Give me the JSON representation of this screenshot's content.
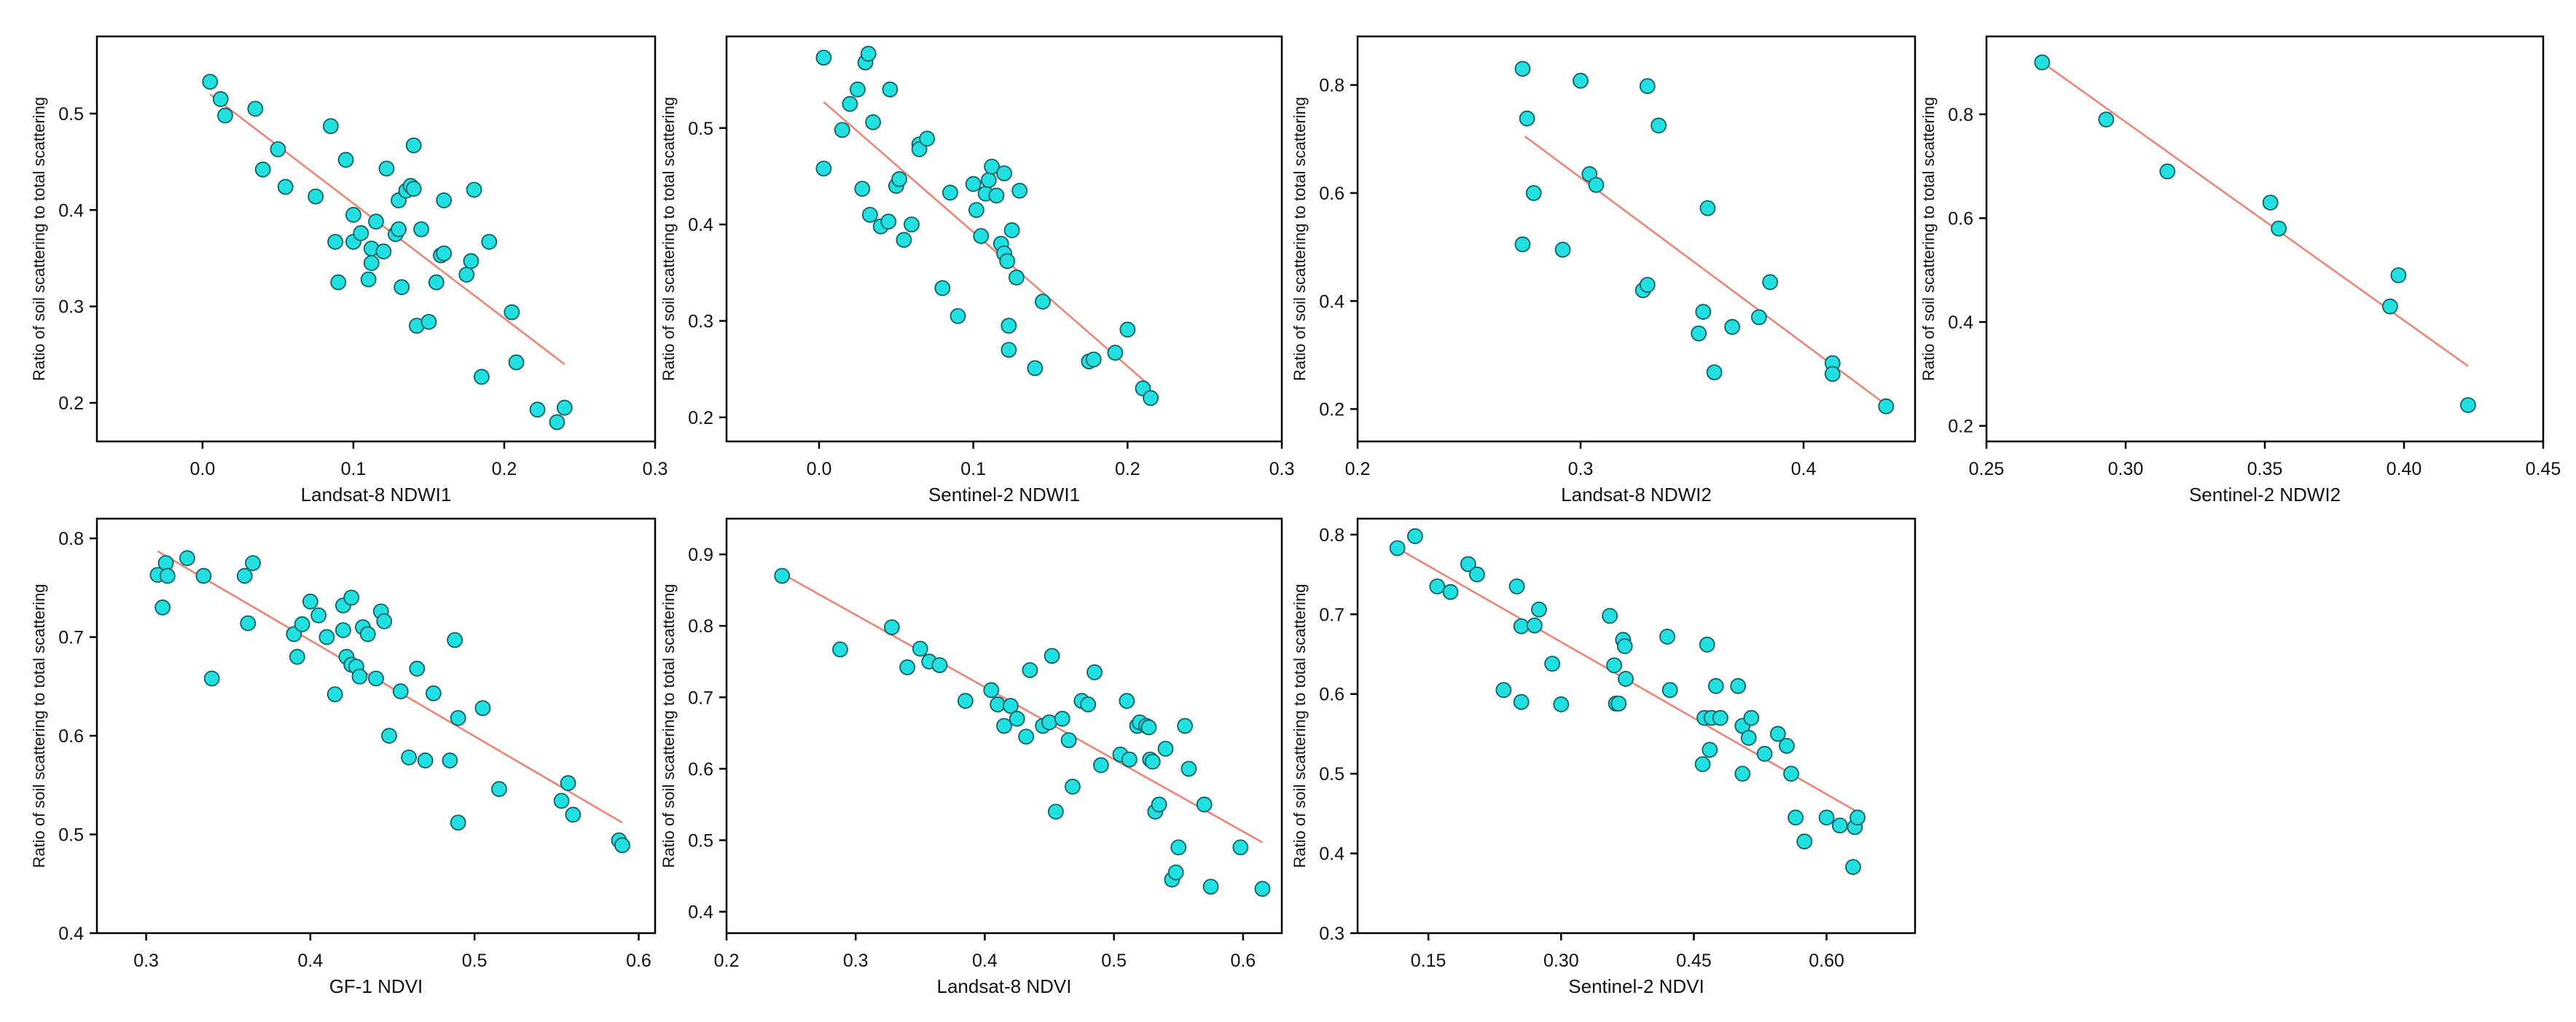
{
  "figure": {
    "panel_count": 7
  },
  "style": {
    "point_fill": "#22e0e0",
    "point_stroke": "#0f5f66",
    "fit_color": "#f08070",
    "axis_color": "#000000"
  },
  "chart_data": [
    {
      "type": "scatter",
      "xlabel": "Landsat-8 NDWI1",
      "ylabel": "Ratio of soil scattering to total scattering",
      "xlim": [
        -0.07,
        0.3
      ],
      "ylim": [
        0.16,
        0.58
      ],
      "xticks": [
        0.0,
        0.1,
        0.2,
        0.3
      ],
      "xtick_labels": [
        "0.0",
        "0.1",
        "0.2",
        "0.3"
      ],
      "yticks": [
        0.2,
        0.3,
        0.4,
        0.5
      ],
      "ytick_labels": [
        "0.2",
        "0.3",
        "0.4",
        "0.5"
      ],
      "fit_line": {
        "x": [
          0.005,
          0.24
        ],
        "y": [
          0.52,
          0.24
        ]
      },
      "points": [
        [
          0.005,
          0.533
        ],
        [
          0.012,
          0.515
        ],
        [
          0.015,
          0.498
        ],
        [
          0.035,
          0.505
        ],
        [
          0.04,
          0.442
        ],
        [
          0.05,
          0.463
        ],
        [
          0.055,
          0.424
        ],
        [
          0.075,
          0.414
        ],
        [
          0.085,
          0.487
        ],
        [
          0.088,
          0.367
        ],
        [
          0.09,
          0.325
        ],
        [
          0.095,
          0.452
        ],
        [
          0.1,
          0.395
        ],
        [
          0.1,
          0.367
        ],
        [
          0.105,
          0.376
        ],
        [
          0.11,
          0.328
        ],
        [
          0.112,
          0.36
        ],
        [
          0.112,
          0.345
        ],
        [
          0.115,
          0.388
        ],
        [
          0.12,
          0.357
        ],
        [
          0.122,
          0.443
        ],
        [
          0.128,
          0.375
        ],
        [
          0.13,
          0.38
        ],
        [
          0.13,
          0.41
        ],
        [
          0.135,
          0.42
        ],
        [
          0.138,
          0.425
        ],
        [
          0.14,
          0.467
        ],
        [
          0.14,
          0.422
        ],
        [
          0.142,
          0.28
        ],
        [
          0.145,
          0.38
        ],
        [
          0.132,
          0.32
        ],
        [
          0.15,
          0.284
        ],
        [
          0.155,
          0.325
        ],
        [
          0.158,
          0.353
        ],
        [
          0.16,
          0.355
        ],
        [
          0.16,
          0.41
        ],
        [
          0.175,
          0.333
        ],
        [
          0.178,
          0.347
        ],
        [
          0.18,
          0.421
        ],
        [
          0.185,
          0.227
        ],
        [
          0.19,
          0.367
        ],
        [
          0.205,
          0.294
        ],
        [
          0.208,
          0.242
        ],
        [
          0.222,
          0.193
        ],
        [
          0.235,
          0.18
        ],
        [
          0.24,
          0.195
        ]
      ]
    },
    {
      "type": "scatter",
      "xlabel": "Sentinel-2 NDWI1",
      "ylabel": "Ratio of soil scattering to total scattering",
      "xlim": [
        -0.06,
        0.3
      ],
      "ylim": [
        0.175,
        0.595
      ],
      "xticks": [
        0.0,
        0.1,
        0.2,
        0.3
      ],
      "xtick_labels": [
        "0.0",
        "0.1",
        "0.2",
        "0.3"
      ],
      "yticks": [
        0.2,
        0.3,
        0.4,
        0.5
      ],
      "ytick_labels": [
        "0.2",
        "0.3",
        "0.4",
        "0.5"
      ],
      "fit_line": {
        "x": [
          0.003,
          0.215
        ],
        "y": [
          0.527,
          0.232
        ]
      },
      "points": [
        [
          0.003,
          0.573
        ],
        [
          0.003,
          0.458
        ],
        [
          0.015,
          0.498
        ],
        [
          0.02,
          0.525
        ],
        [
          0.025,
          0.54
        ],
        [
          0.028,
          0.437
        ],
        [
          0.03,
          0.568
        ],
        [
          0.032,
          0.577
        ],
        [
          0.033,
          0.41
        ],
        [
          0.035,
          0.506
        ],
        [
          0.04,
          0.398
        ],
        [
          0.045,
          0.403
        ],
        [
          0.046,
          0.54
        ],
        [
          0.05,
          0.44
        ],
        [
          0.052,
          0.447
        ],
        [
          0.055,
          0.384
        ],
        [
          0.06,
          0.4
        ],
        [
          0.065,
          0.483
        ],
        [
          0.065,
          0.478
        ],
        [
          0.07,
          0.489
        ],
        [
          0.08,
          0.334
        ],
        [
          0.085,
          0.433
        ],
        [
          0.09,
          0.305
        ],
        [
          0.1,
          0.442
        ],
        [
          0.102,
          0.415
        ],
        [
          0.105,
          0.388
        ],
        [
          0.108,
          0.432
        ],
        [
          0.11,
          0.446
        ],
        [
          0.112,
          0.46
        ],
        [
          0.115,
          0.43
        ],
        [
          0.118,
          0.38
        ],
        [
          0.12,
          0.453
        ],
        [
          0.12,
          0.37
        ],
        [
          0.122,
          0.362
        ],
        [
          0.123,
          0.295
        ],
        [
          0.123,
          0.27
        ],
        [
          0.125,
          0.394
        ],
        [
          0.128,
          0.345
        ],
        [
          0.13,
          0.435
        ],
        [
          0.14,
          0.251
        ],
        [
          0.145,
          0.32
        ],
        [
          0.175,
          0.258
        ],
        [
          0.178,
          0.26
        ],
        [
          0.192,
          0.267
        ],
        [
          0.2,
          0.291
        ],
        [
          0.21,
          0.23
        ],
        [
          0.215,
          0.22
        ]
      ]
    },
    {
      "type": "scatter",
      "xlabel": "Landsat-8 NDWI2",
      "ylabel": "Ratio of soil scattering to total scattering",
      "xlim": [
        0.2,
        0.45
      ],
      "ylim": [
        0.14,
        0.89
      ],
      "xticks": [
        0.2,
        0.3,
        0.4
      ],
      "xtick_labels": [
        "0.2",
        "0.3",
        "0.4"
      ],
      "yticks": [
        0.2,
        0.4,
        0.6,
        0.8
      ],
      "ytick_labels": [
        "0.2",
        "0.4",
        "0.6",
        "0.8"
      ],
      "fit_line": {
        "x": [
          0.275,
          0.437
        ],
        "y": [
          0.705,
          0.208
        ]
      },
      "points": [
        [
          0.274,
          0.83
        ],
        [
          0.276,
          0.738
        ],
        [
          0.274,
          0.505
        ],
        [
          0.279,
          0.6
        ],
        [
          0.292,
          0.495
        ],
        [
          0.3,
          0.808
        ],
        [
          0.304,
          0.635
        ],
        [
          0.307,
          0.615
        ],
        [
          0.33,
          0.798
        ],
        [
          0.335,
          0.725
        ],
        [
          0.328,
          0.42
        ],
        [
          0.33,
          0.43
        ],
        [
          0.353,
          0.34
        ],
        [
          0.355,
          0.38
        ],
        [
          0.357,
          0.572
        ],
        [
          0.36,
          0.268
        ],
        [
          0.368,
          0.352
        ],
        [
          0.38,
          0.37
        ],
        [
          0.385,
          0.435
        ],
        [
          0.413,
          0.285
        ],
        [
          0.413,
          0.265
        ],
        [
          0.437,
          0.205
        ]
      ]
    },
    {
      "type": "scatter",
      "xlabel": "Sentinel-2 NDWI2",
      "ylabel": "Ratio of soil scattering to total scattering",
      "xlim": [
        0.25,
        0.45
      ],
      "ylim": [
        0.17,
        0.95
      ],
      "xticks": [
        0.25,
        0.3,
        0.35,
        0.4,
        0.45
      ],
      "xtick_labels": [
        "0.25",
        "0.30",
        "0.35",
        "0.40",
        "0.45"
      ],
      "yticks": [
        0.2,
        0.4,
        0.6,
        0.8
      ],
      "ytick_labels": [
        "0.2",
        "0.4",
        "0.6",
        "0.8"
      ],
      "fit_line": {
        "x": [
          0.27,
          0.423
        ],
        "y": [
          0.9,
          0.315
        ]
      },
      "points": [
        [
          0.27,
          0.9
        ],
        [
          0.293,
          0.79
        ],
        [
          0.315,
          0.69
        ],
        [
          0.352,
          0.63
        ],
        [
          0.355,
          0.58
        ],
        [
          0.395,
          0.43
        ],
        [
          0.398,
          0.49
        ],
        [
          0.423,
          0.24
        ]
      ]
    },
    {
      "type": "scatter",
      "xlabel": "GF-1 NDVI",
      "ylabel": "Ratio of soil scattering to total scattering",
      "xlim": [
        0.27,
        0.61
      ],
      "ylim": [
        0.4,
        0.82
      ],
      "xticks": [
        0.3,
        0.4,
        0.5,
        0.6
      ],
      "xtick_labels": [
        "0.3",
        "0.4",
        "0.5",
        "0.6"
      ],
      "yticks": [
        0.4,
        0.5,
        0.6,
        0.7,
        0.8
      ],
      "ytick_labels": [
        "0.4",
        "0.5",
        "0.6",
        "0.7",
        "0.8"
      ],
      "fit_line": {
        "x": [
          0.307,
          0.59
        ],
        "y": [
          0.787,
          0.512
        ]
      },
      "points": [
        [
          0.307,
          0.763
        ],
        [
          0.31,
          0.73
        ],
        [
          0.312,
          0.775
        ],
        [
          0.313,
          0.762
        ],
        [
          0.325,
          0.78
        ],
        [
          0.335,
          0.762
        ],
        [
          0.34,
          0.658
        ],
        [
          0.36,
          0.762
        ],
        [
          0.362,
          0.714
        ],
        [
          0.365,
          0.775
        ],
        [
          0.39,
          0.703
        ],
        [
          0.392,
          0.68
        ],
        [
          0.395,
          0.713
        ],
        [
          0.4,
          0.736
        ],
        [
          0.405,
          0.722
        ],
        [
          0.41,
          0.7
        ],
        [
          0.415,
          0.642
        ],
        [
          0.42,
          0.732
        ],
        [
          0.42,
          0.707
        ],
        [
          0.422,
          0.68
        ],
        [
          0.425,
          0.74
        ],
        [
          0.425,
          0.672
        ],
        [
          0.428,
          0.67
        ],
        [
          0.43,
          0.66
        ],
        [
          0.432,
          0.71
        ],
        [
          0.435,
          0.703
        ],
        [
          0.44,
          0.658
        ],
        [
          0.443,
          0.726
        ],
        [
          0.445,
          0.716
        ],
        [
          0.448,
          0.6
        ],
        [
          0.455,
          0.645
        ],
        [
          0.46,
          0.578
        ],
        [
          0.465,
          0.668
        ],
        [
          0.47,
          0.575
        ],
        [
          0.475,
          0.643
        ],
        [
          0.485,
          0.575
        ],
        [
          0.488,
          0.697
        ],
        [
          0.49,
          0.618
        ],
        [
          0.49,
          0.512
        ],
        [
          0.505,
          0.628
        ],
        [
          0.515,
          0.546
        ],
        [
          0.553,
          0.534
        ],
        [
          0.557,
          0.552
        ],
        [
          0.56,
          0.52
        ],
        [
          0.588,
          0.494
        ],
        [
          0.59,
          0.489
        ]
      ]
    },
    {
      "type": "scatter",
      "xlabel": "Landsat-8 NDVI",
      "ylabel": "Ratio of soil scattering to total scattering",
      "xlim": [
        0.2,
        0.63
      ],
      "ylim": [
        0.37,
        0.95
      ],
      "xticks": [
        0.2,
        0.3,
        0.4,
        0.5,
        0.6
      ],
      "xtick_labels": [
        "0.2",
        "0.3",
        "0.4",
        "0.5",
        "0.6"
      ],
      "yticks": [
        0.4,
        0.5,
        0.6,
        0.7,
        0.8,
        0.9
      ],
      "ytick_labels": [
        "0.4",
        "0.5",
        "0.6",
        "0.7",
        "0.8",
        "0.9"
      ],
      "fit_line": {
        "x": [
          0.243,
          0.615
        ],
        "y": [
          0.873,
          0.497
        ]
      },
      "points": [
        [
          0.243,
          0.87
        ],
        [
          0.288,
          0.767
        ],
        [
          0.328,
          0.798
        ],
        [
          0.34,
          0.742
        ],
        [
          0.35,
          0.768
        ],
        [
          0.357,
          0.75
        ],
        [
          0.365,
          0.745
        ],
        [
          0.385,
          0.695
        ],
        [
          0.405,
          0.71
        ],
        [
          0.41,
          0.69
        ],
        [
          0.415,
          0.66
        ],
        [
          0.42,
          0.688
        ],
        [
          0.425,
          0.67
        ],
        [
          0.432,
          0.645
        ],
        [
          0.435,
          0.738
        ],
        [
          0.445,
          0.66
        ],
        [
          0.45,
          0.665
        ],
        [
          0.452,
          0.758
        ],
        [
          0.455,
          0.54
        ],
        [
          0.46,
          0.67
        ],
        [
          0.465,
          0.64
        ],
        [
          0.468,
          0.575
        ],
        [
          0.475,
          0.695
        ],
        [
          0.48,
          0.69
        ],
        [
          0.485,
          0.735
        ],
        [
          0.49,
          0.605
        ],
        [
          0.505,
          0.62
        ],
        [
          0.51,
          0.695
        ],
        [
          0.512,
          0.613
        ],
        [
          0.518,
          0.66
        ],
        [
          0.52,
          0.665
        ],
        [
          0.525,
          0.66
        ],
        [
          0.527,
          0.658
        ],
        [
          0.528,
          0.613
        ],
        [
          0.53,
          0.61
        ],
        [
          0.532,
          0.54
        ],
        [
          0.535,
          0.55
        ],
        [
          0.54,
          0.628
        ],
        [
          0.545,
          0.445
        ],
        [
          0.548,
          0.455
        ],
        [
          0.55,
          0.49
        ],
        [
          0.555,
          0.66
        ],
        [
          0.558,
          0.6
        ],
        [
          0.57,
          0.55
        ],
        [
          0.575,
          0.435
        ],
        [
          0.598,
          0.49
        ],
        [
          0.615,
          0.432
        ]
      ]
    },
    {
      "type": "scatter",
      "xlabel": "Sentinel-2 NDVI",
      "ylabel": "Ratio of soil scattering to total scattering",
      "xlim": [
        0.07,
        0.7
      ],
      "ylim": [
        0.3,
        0.82
      ],
      "xticks": [
        0.15,
        0.3,
        0.45,
        0.6
      ],
      "xtick_labels": [
        "0.15",
        "0.30",
        "0.45",
        "0.60"
      ],
      "yticks": [
        0.3,
        0.4,
        0.5,
        0.6,
        0.7,
        0.8
      ],
      "ytick_labels": [
        "0.3",
        "0.4",
        "0.5",
        "0.6",
        "0.7",
        "0.8"
      ],
      "fit_line": {
        "x": [
          0.115,
          0.635
        ],
        "y": [
          0.783,
          0.452
        ]
      },
      "points": [
        [
          0.115,
          0.783
        ],
        [
          0.135,
          0.798
        ],
        [
          0.16,
          0.735
        ],
        [
          0.175,
          0.728
        ],
        [
          0.195,
          0.763
        ],
        [
          0.205,
          0.75
        ],
        [
          0.235,
          0.605
        ],
        [
          0.25,
          0.735
        ],
        [
          0.255,
          0.59
        ],
        [
          0.255,
          0.685
        ],
        [
          0.27,
          0.686
        ],
        [
          0.275,
          0.706
        ],
        [
          0.29,
          0.638
        ],
        [
          0.3,
          0.587
        ],
        [
          0.355,
          0.698
        ],
        [
          0.36,
          0.636
        ],
        [
          0.362,
          0.588
        ],
        [
          0.365,
          0.588
        ],
        [
          0.37,
          0.668
        ],
        [
          0.372,
          0.66
        ],
        [
          0.373,
          0.619
        ],
        [
          0.42,
          0.672
        ],
        [
          0.423,
          0.605
        ],
        [
          0.46,
          0.512
        ],
        [
          0.462,
          0.57
        ],
        [
          0.465,
          0.662
        ],
        [
          0.468,
          0.53
        ],
        [
          0.47,
          0.57
        ],
        [
          0.475,
          0.61
        ],
        [
          0.48,
          0.57
        ],
        [
          0.5,
          0.61
        ],
        [
          0.505,
          0.56
        ],
        [
          0.505,
          0.5
        ],
        [
          0.512,
          0.545
        ],
        [
          0.515,
          0.57
        ],
        [
          0.53,
          0.525
        ],
        [
          0.545,
          0.55
        ],
        [
          0.555,
          0.535
        ],
        [
          0.56,
          0.5
        ],
        [
          0.565,
          0.445
        ],
        [
          0.575,
          0.415
        ],
        [
          0.6,
          0.445
        ],
        [
          0.615,
          0.435
        ],
        [
          0.63,
          0.383
        ],
        [
          0.632,
          0.433
        ],
        [
          0.635,
          0.445
        ]
      ]
    }
  ]
}
